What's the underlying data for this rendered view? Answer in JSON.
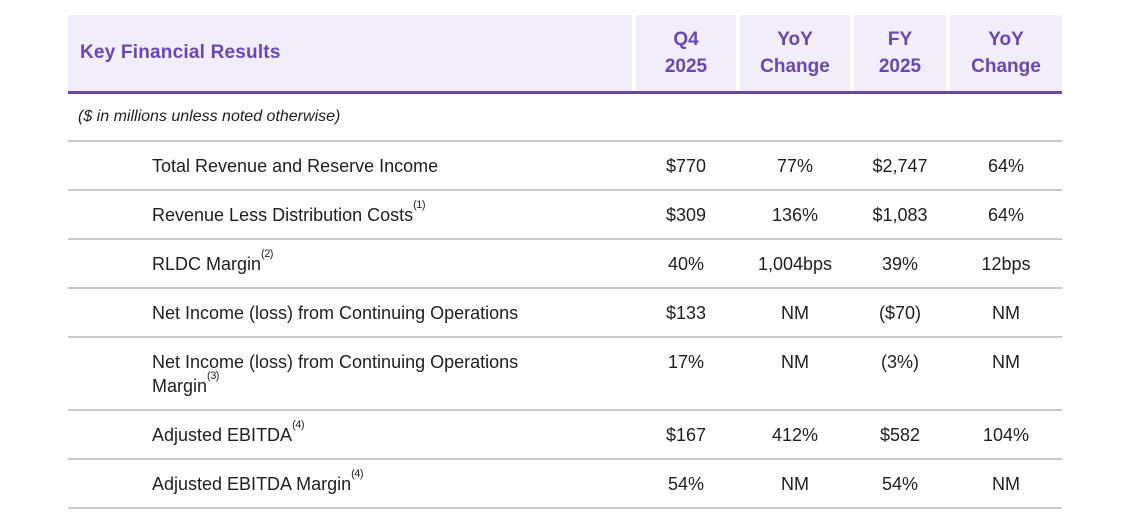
{
  "table": {
    "title": "Key Financial Results",
    "note": "($ in millions unless noted otherwise)",
    "columns": [
      {
        "line1": "Q4",
        "line2": "2025"
      },
      {
        "line1": "YoY",
        "line2": "Change"
      },
      {
        "line1": "FY",
        "line2": "2025"
      },
      {
        "line1": "YoY",
        "line2": "Change"
      }
    ],
    "rows": [
      {
        "label": "Total Revenue and Reserve Income",
        "footnote": "",
        "values": [
          "$770",
          "77%",
          "$2,747",
          "64%"
        ]
      },
      {
        "label": "Revenue Less Distribution Costs",
        "footnote": "(1)",
        "values": [
          "$309",
          "136%",
          "$1,083",
          "64%"
        ]
      },
      {
        "label": "RLDC Margin",
        "footnote": "(2)",
        "values": [
          "40%",
          "1,004bps",
          "39%",
          "12bps"
        ]
      },
      {
        "label": "Net Income (loss) from Continuing Operations",
        "footnote": "",
        "values": [
          "$133",
          "NM",
          "($70)",
          "NM"
        ]
      },
      {
        "label": "Net Income (loss) from Continuing Operations Margin",
        "footnote": "(3)",
        "values": [
          "17%",
          "NM",
          "(3%)",
          "NM"
        ]
      },
      {
        "label": "Adjusted EBITDA",
        "footnote": "(4)",
        "values": [
          "$167",
          "412%",
          "$582",
          "104%"
        ]
      },
      {
        "label": "Adjusted EBITDA Margin",
        "footnote": "(4)",
        "values": [
          "54%",
          "NM",
          "54%",
          "NM"
        ]
      }
    ],
    "colors": {
      "accent_text": "#6847b8",
      "accent_line": "#6a4aa2",
      "header_bg": "#f1eefa",
      "divider": "#c9c9c9",
      "body_text": "#1f1f1f"
    }
  }
}
